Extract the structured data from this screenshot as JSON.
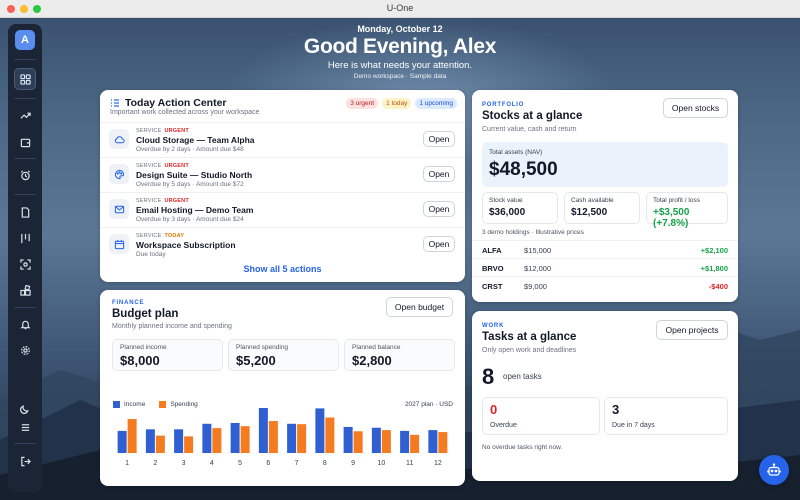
{
  "window": {
    "title": "U-One"
  },
  "titlebar_colors": {
    "close": "#fe5f57",
    "minimize": "#febc2e",
    "zoom": "#28c840"
  },
  "sidebar": {
    "avatar_letter": "A",
    "items": [
      "dashboard-icon",
      "trend-icon",
      "wallet-icon",
      "alarm-icon",
      "document-icon",
      "kanban-icon",
      "scan-icon",
      "apps-icon",
      "bell-icon",
      "settings-icon",
      "moon-icon",
      "menu-icon",
      "logout-icon"
    ]
  },
  "header": {
    "date": "Monday, October 12",
    "greeting": "Good Evening, Alex",
    "subtitle": "Here is what needs your attention.",
    "demo_note": "Demo workspace · Sample data"
  },
  "action_center": {
    "title": "Today Action Center",
    "subtitle": "Important work collected across your workspace",
    "badges": {
      "urgent": "3 urgent",
      "today": "1 today",
      "upcoming": "1 upcoming"
    },
    "service_label": "SERVICE",
    "open_label": "Open",
    "items": [
      {
        "status": "URGENT",
        "name": "Cloud Storage — Team Alpha",
        "due": "Overdue by 2 days · Amount due $48",
        "icon": "cloud-icon"
      },
      {
        "status": "URGENT",
        "name": "Design Suite — Studio North",
        "due": "Overdue by 5 days · Amount due $72",
        "icon": "palette-icon"
      },
      {
        "status": "URGENT",
        "name": "Email Hosting — Demo Team",
        "due": "Overdue by 3 days · Amount due $24",
        "icon": "mail-icon"
      },
      {
        "status": "TODAY",
        "name": "Workspace Subscription",
        "due": "Due today",
        "icon": "calendar-icon"
      }
    ],
    "show_all": "Show all 5 actions"
  },
  "budget": {
    "kicker": "FINANCE",
    "title": "Budget plan",
    "subtitle": "Monthly planned income and spending",
    "open_button": "Open budget",
    "stats": [
      {
        "label": "Planned income",
        "value": "$8,000"
      },
      {
        "label": "Planned spending",
        "value": "$5,200"
      },
      {
        "label": "Planned balance",
        "value": "$2,800"
      }
    ],
    "legend_income": "Income",
    "legend_spending": "Spending",
    "plan_label": "2027 plan · USD"
  },
  "chart_data": {
    "type": "bar",
    "title": "",
    "categories": [
      "1",
      "2",
      "3",
      "4",
      "5",
      "6",
      "7",
      "8",
      "9",
      "10",
      "11",
      "12"
    ],
    "series": [
      {
        "name": "Income",
        "color": "#2f5fd0",
        "values": [
          560,
          600,
          600,
          740,
          760,
          1140,
          740,
          1130,
          660,
          640,
          560,
          580
        ]
      },
      {
        "name": "Spending",
        "color": "#f47b20",
        "values": [
          860,
          440,
          420,
          630,
          680,
          810,
          730,
          900,
          550,
          580,
          460,
          530
        ]
      }
    ]
  },
  "stocks": {
    "kicker": "PORTFOLIO",
    "title": "Stocks at a glance",
    "subtitle": "Current value, cash and return",
    "open_button": "Open stocks",
    "total_label": "Total assets (NAV)",
    "total_value": "$48,500",
    "stats": [
      {
        "label": "Stock value",
        "value": "$36,000"
      },
      {
        "label": "Cash available",
        "value": "$12,500"
      },
      {
        "label": "Total profit / loss",
        "value": "+$3,500 (+7.8%)"
      }
    ],
    "holdings_note": "3 demo holdings · Illustrative prices",
    "holdings": [
      {
        "ticker": "ALFA",
        "price": "$15,000",
        "change": "+$2,100"
      },
      {
        "ticker": "BRVO",
        "price": "$12,000",
        "change": "+$1,800"
      },
      {
        "ticker": "CRST",
        "price": "$9,000",
        "change": "-$400"
      }
    ]
  },
  "tasks": {
    "kicker": "WORK",
    "title": "Tasks at a glance",
    "subtitle": "Only open work and deadlines",
    "open_button": "Open projects",
    "open_count": "8",
    "open_label": "open tasks",
    "overdue_count": "0",
    "overdue_label": "Overdue",
    "due_count": "3",
    "due_label": "Due in 7 days",
    "note": "No overdue tasks right now."
  }
}
